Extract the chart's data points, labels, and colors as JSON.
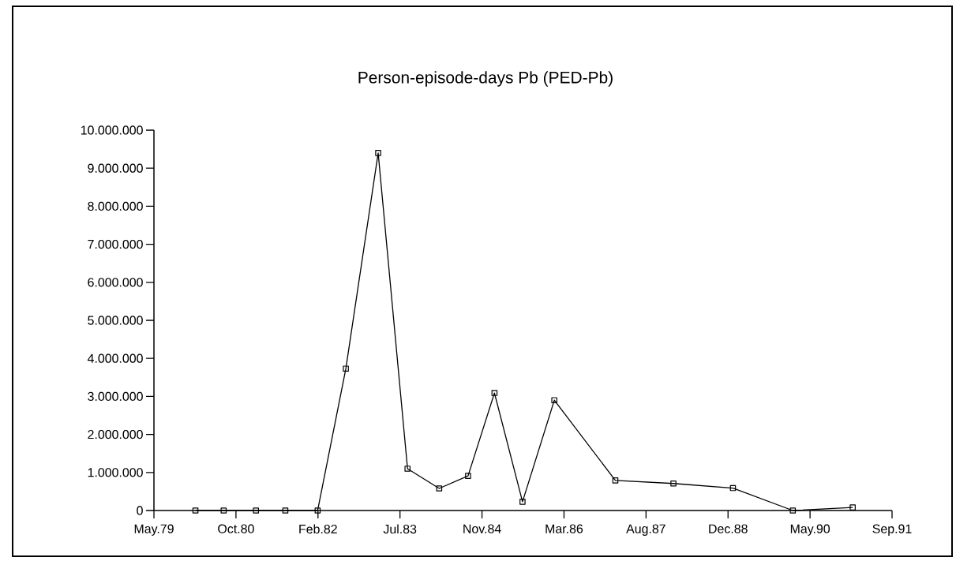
{
  "chart_data": {
    "type": "line",
    "title": "Person-episode-days Pb (PED-Pb)",
    "x": [
      "1980-02-03",
      "1980-07-24",
      "1981-02-06",
      "1981-08-04",
      "1982-02-17",
      "1982-08-08",
      "1983-02-21",
      "1983-08-19",
      "1984-02-28",
      "1984-08-22",
      "1985-01-30",
      "1985-07-20",
      "1986-01-30",
      "1987-02-06",
      "1988-01-26",
      "1989-01-23",
      "1990-01-23",
      "1991-01-23"
    ],
    "series": [
      {
        "color": "#000000",
        "values": [
          0,
          0,
          0,
          0,
          0,
          3730000,
          9400000,
          1100000,
          580000,
          910000,
          3090000,
          230000,
          2900000,
          790000,
          710000,
          590000,
          0,
          80000
        ]
      }
    ],
    "xlim": [
      "1979-05-26",
      "1991-09-20"
    ],
    "xticks": [
      {
        "value": "1979-05-26",
        "label": "May.79"
      },
      {
        "value": "1980-10-07",
        "label": "Oct.80"
      },
      {
        "value": "1982-02-19",
        "label": "Feb.82"
      },
      {
        "value": "1983-07-04",
        "label": "Jul.83"
      },
      {
        "value": "1984-11-15",
        "label": "Nov.84"
      },
      {
        "value": "1986-03-30",
        "label": "Mar.86"
      },
      {
        "value": "1987-08-12",
        "label": "Aug.87"
      },
      {
        "value": "1988-12-24",
        "label": "Dec.88"
      },
      {
        "value": "1990-05-08",
        "label": "May.90"
      },
      {
        "value": "1991-09-20",
        "label": "Sep.91"
      }
    ],
    "ylim": [
      0,
      10000000
    ],
    "yticks": [
      0,
      {
        "value": 1000000,
        "label": "1.000.000"
      },
      {
        "value": 2000000,
        "label": "2.000.000"
      },
      {
        "value": 3000000,
        "label": "3.000.000"
      },
      {
        "value": 4000000,
        "label": "4.000.000"
      },
      {
        "value": 5000000,
        "label": "5.000.000"
      },
      {
        "value": 6000000,
        "label": "6.000.000"
      },
      {
        "value": 7000000,
        "label": "7.000.000"
      },
      {
        "value": 8000000,
        "label": "8.000.000"
      },
      {
        "value": 9000000,
        "label": "9.000.000"
      },
      {
        "value": 10000000,
        "label": "10.000.000"
      }
    ],
    "marker": "square",
    "line_style": "solid"
  }
}
